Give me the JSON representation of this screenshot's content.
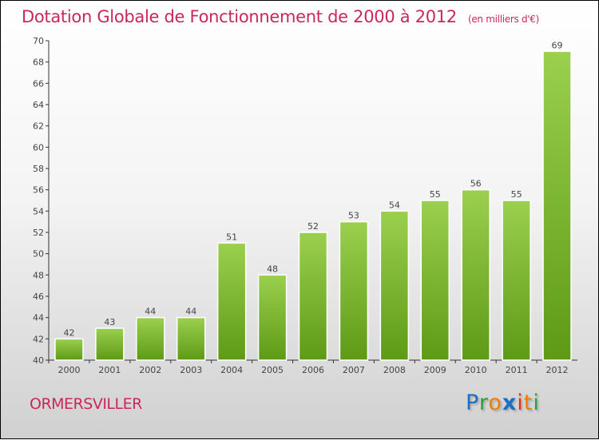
{
  "title": "Dotation Globale de Fonctionnement de 2000 à 2012",
  "subtitle": "(en milliers d'€)",
  "place": "ORMERSVILLER",
  "logo": {
    "text": "Proxiti",
    "letters": [
      "P",
      "r",
      "o",
      "x",
      "i",
      "t",
      "i"
    ],
    "colors": [
      "#1a6fc4",
      "#2e9e3a",
      "#f07d00",
      "#1a6fc4",
      "#e03020",
      "#f07d00",
      "#2e9e3a"
    ]
  },
  "colors": {
    "title": "#c8285a",
    "bar_top": "#9ad04e",
    "bar_bottom": "#5e9a16"
  },
  "chart_data": {
    "type": "bar",
    "title": "Dotation Globale de Fonctionnement de 2000 à 2012",
    "xlabel": "",
    "ylabel": "",
    "categories": [
      "2000",
      "2001",
      "2002",
      "2003",
      "2004",
      "2005",
      "2006",
      "2007",
      "2008",
      "2009",
      "2010",
      "2011",
      "2012"
    ],
    "values": [
      42,
      43,
      44,
      44,
      51,
      48,
      52,
      53,
      54,
      55,
      56,
      55,
      69
    ],
    "ylim": [
      40,
      70
    ],
    "yticks": [
      40,
      42,
      44,
      46,
      48,
      50,
      52,
      54,
      56,
      58,
      60,
      62,
      64,
      66,
      68,
      70
    ],
    "grid": false
  }
}
